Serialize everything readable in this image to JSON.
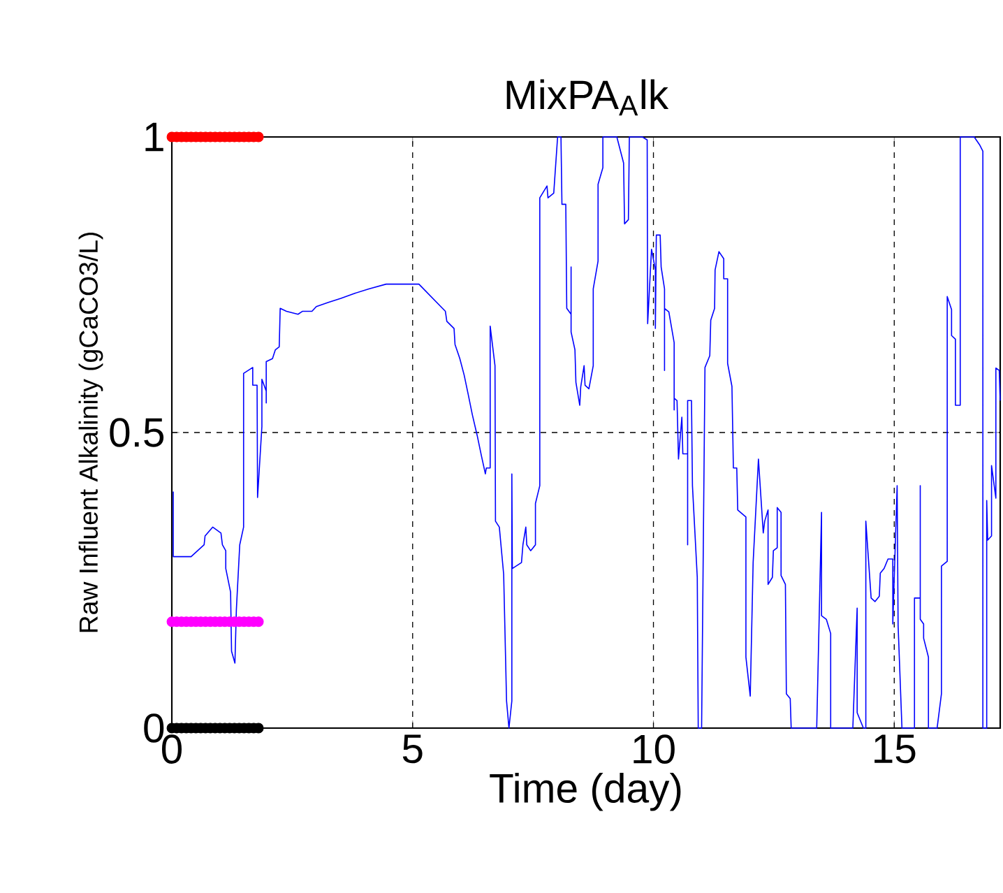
{
  "chart_data": {
    "type": "line",
    "title": "MixPA$_{A}$lk",
    "xlabel": "Time (day)",
    "ylabel": "Raw Influent Alkalinity (gCaCO3/L)",
    "xlim": [
      0,
      17.2
    ],
    "xticks": [
      0,
      5,
      10,
      15
    ],
    "ylim": [
      0,
      1
    ],
    "yticks": [
      0,
      {
        "value": 0.5,
        "label": "0.5"
      },
      1
    ],
    "grid": true,
    "series": [
      {
        "color": "#0000ff",
        "x": [
          0.03,
          0.03,
          0.4,
          0.67,
          0.69,
          0.85,
          1.02,
          1.05,
          1.12,
          1.12,
          1.22,
          1.24,
          1.31,
          1.34,
          1.41,
          1.49,
          1.49,
          1.68,
          1.68,
          1.77,
          1.78,
          1.87,
          1.87,
          1.96,
          1.96,
          1.96,
          2.09,
          2.15,
          2.23,
          2.25,
          2.38,
          2.62,
          2.71,
          2.91,
          3.0,
          3.25,
          3.51,
          3.78,
          4.09,
          4.45,
          5.13,
          5.68,
          5.71,
          5.86,
          5.88,
          5.98,
          6.07,
          6.15,
          6.24,
          6.34,
          6.43,
          6.51,
          6.53,
          6.61,
          6.61,
          6.71,
          6.72,
          6.8,
          6.89,
          6.95,
          7.0,
          7.06,
          7.06,
          7.07,
          7.26,
          7.29,
          7.35,
          7.37,
          7.45,
          7.55,
          7.55,
          7.64,
          7.64,
          7.79,
          7.81,
          7.93,
          8.01,
          8.08,
          8.1,
          8.18,
          8.2,
          8.29,
          8.29,
          8.29,
          8.37,
          8.39,
          8.47,
          8.49,
          8.56,
          8.58,
          8.66,
          8.75,
          8.75,
          8.85,
          8.85,
          8.95,
          8.95,
          9.24,
          9.38,
          9.4,
          9.48,
          9.5,
          9.77,
          9.87,
          9.88,
          9.96,
          10.04,
          10.04,
          10.06,
          10.14,
          10.16,
          10.23,
          10.23,
          10.23,
          10.32,
          10.43,
          10.43,
          10.43,
          10.49,
          10.52,
          10.59,
          10.61,
          10.71,
          10.71,
          10.71,
          10.79,
          10.81,
          10.91,
          10.93,
          11.0,
          11.07,
          11.17,
          11.19,
          11.27,
          11.28,
          11.36,
          11.46,
          11.46,
          11.54,
          11.54,
          11.63,
          11.66,
          11.73,
          11.75,
          11.92,
          11.92,
          12.01,
          12.07,
          12.18,
          12.28,
          12.31,
          12.38,
          12.38,
          12.47,
          12.49,
          12.57,
          12.57,
          12.65,
          12.65,
          12.74,
          12.76,
          12.84,
          12.86,
          13.39,
          13.49,
          13.49,
          13.59,
          13.68,
          13.68,
          14.14,
          14.23,
          14.23,
          14.36,
          14.41,
          14.41,
          14.52,
          14.6,
          14.69,
          14.71,
          14.79,
          14.87,
          14.97,
          14.97,
          15.06,
          15.08,
          15.16,
          15.42,
          15.42,
          15.54,
          15.54,
          15.54,
          15.61,
          15.61,
          15.71,
          15.71,
          15.89,
          15.98,
          15.98,
          16.1,
          16.1,
          16.19,
          16.19,
          16.27,
          16.27,
          16.37,
          16.37,
          16.66,
          16.77,
          16.84,
          16.84,
          16.92,
          16.92,
          16.94,
          17.02,
          17.02,
          17.11,
          17.11,
          17.18,
          17.2
        ],
        "values": [
          0.4,
          0.29,
          0.29,
          0.31,
          0.325,
          0.34,
          0.33,
          0.31,
          0.3,
          0.27,
          0.23,
          0.13,
          0.11,
          0.2,
          0.31,
          0.34,
          0.6,
          0.61,
          0.58,
          0.58,
          0.39,
          0.51,
          0.59,
          0.57,
          0.55,
          0.62,
          0.625,
          0.64,
          0.645,
          0.71,
          0.705,
          0.7,
          0.705,
          0.705,
          0.713,
          0.72,
          0.727,
          0.735,
          0.743,
          0.751,
          0.751,
          0.705,
          0.688,
          0.676,
          0.649,
          0.625,
          0.597,
          0.566,
          0.53,
          0.495,
          0.46,
          0.43,
          0.44,
          0.44,
          0.68,
          0.613,
          0.35,
          0.34,
          0.26,
          0.046,
          0.0,
          0.046,
          0.43,
          0.27,
          0.28,
          0.31,
          0.34,
          0.31,
          0.3,
          0.31,
          0.38,
          0.41,
          0.897,
          0.917,
          0.897,
          0.905,
          1.0,
          1.0,
          0.886,
          0.886,
          0.71,
          0.7,
          0.78,
          0.67,
          0.64,
          0.585,
          0.546,
          0.577,
          0.613,
          0.58,
          0.574,
          0.613,
          0.743,
          0.79,
          0.92,
          0.948,
          1.0,
          1.0,
          0.956,
          0.853,
          0.86,
          1.0,
          1.0,
          0.995,
          0.684,
          0.81,
          0.775,
          0.676,
          0.834,
          0.834,
          0.78,
          0.743,
          0.605,
          0.71,
          0.704,
          0.652,
          0.538,
          0.558,
          0.554,
          0.455,
          0.526,
          0.464,
          0.464,
          0.31,
          0.554,
          0.554,
          0.41,
          0.255,
          0.0,
          0.0,
          0.61,
          0.63,
          0.69,
          0.71,
          0.775,
          0.806,
          0.794,
          0.76,
          0.76,
          0.617,
          0.578,
          0.44,
          0.44,
          0.369,
          0.357,
          0.12,
          0.054,
          0.28,
          0.455,
          0.33,
          0.35,
          0.369,
          0.243,
          0.255,
          0.3,
          0.305,
          0.373,
          0.365,
          0.258,
          0.243,
          0.058,
          0.05,
          0.0,
          0.0,
          0.365,
          0.19,
          0.184,
          0.16,
          0.0,
          0.0,
          0.203,
          0.026,
          0.0,
          0.0,
          0.35,
          0.22,
          0.214,
          0.223,
          0.262,
          0.27,
          0.286,
          0.286,
          0.176,
          0.41,
          0.174,
          0.0,
          0.0,
          0.22,
          0.22,
          0.41,
          0.184,
          0.176,
          0.152,
          0.12,
          0.0,
          0.0,
          0.058,
          0.274,
          0.282,
          0.73,
          0.708,
          0.664,
          0.658,
          0.546,
          0.546,
          1.0,
          1.0,
          0.987,
          0.976,
          0.0,
          0.0,
          0.385,
          0.318,
          0.325,
          0.444,
          0.389,
          0.609,
          0.605,
          0.554
        ]
      },
      {
        "type": "scatter",
        "color": "#ff0000",
        "marker": "circle",
        "x": [
          0,
          0.1,
          0.2,
          0.3,
          0.4,
          0.5,
          0.6,
          0.7,
          0.8,
          0.9,
          1.0,
          1.1,
          1.2,
          1.3,
          1.4,
          1.5,
          1.6,
          1.7,
          1.8
        ],
        "values": [
          1,
          1,
          1,
          1,
          1,
          1,
          1,
          1,
          1,
          1,
          1,
          1,
          1,
          1,
          1,
          1,
          1,
          1,
          1
        ]
      },
      {
        "type": "scatter",
        "color": "#ff00ff",
        "marker": "circle",
        "x": [
          0,
          0.1,
          0.2,
          0.3,
          0.4,
          0.5,
          0.6,
          0.7,
          0.8,
          0.9,
          1.0,
          1.1,
          1.2,
          1.3,
          1.4,
          1.5,
          1.6,
          1.7,
          1.8
        ],
        "values": [
          0.18,
          0.18,
          0.18,
          0.18,
          0.18,
          0.18,
          0.18,
          0.18,
          0.18,
          0.18,
          0.18,
          0.18,
          0.18,
          0.18,
          0.18,
          0.18,
          0.18,
          0.18,
          0.18
        ]
      },
      {
        "type": "scatter",
        "color": "#000000",
        "marker": "circle",
        "x": [
          0,
          0.1,
          0.2,
          0.3,
          0.4,
          0.5,
          0.6,
          0.7,
          0.8,
          0.9,
          1.0,
          1.1,
          1.2,
          1.3,
          1.4,
          1.5,
          1.6,
          1.7,
          1.8
        ],
        "values": [
          0,
          0,
          0,
          0,
          0,
          0,
          0,
          0,
          0,
          0,
          0,
          0,
          0,
          0,
          0,
          0,
          0,
          0,
          0
        ]
      }
    ]
  }
}
